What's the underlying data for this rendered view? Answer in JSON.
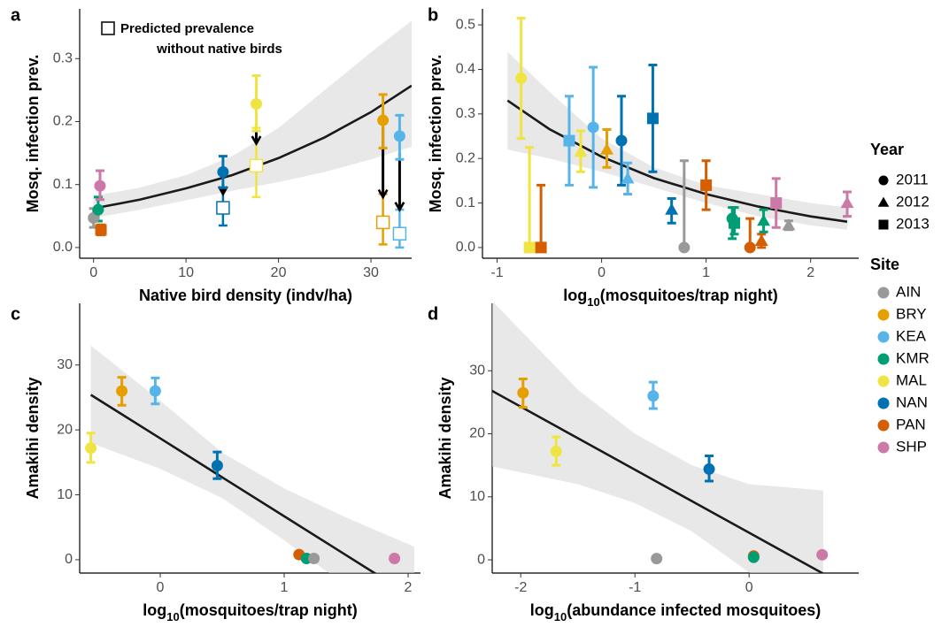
{
  "legend": {
    "shape_title": "Year",
    "shapes": [
      {
        "label": "2011",
        "shape": "circle"
      },
      {
        "label": "2012",
        "shape": "triangle"
      },
      {
        "label": "2013",
        "shape": "square"
      }
    ],
    "color_title": "Site",
    "colors": [
      {
        "label": "AIN",
        "color": "#999999"
      },
      {
        "label": "BRY",
        "color": "#E69F00"
      },
      {
        "label": "KEA",
        "color": "#56B4E9"
      },
      {
        "label": "KMR",
        "color": "#009E73"
      },
      {
        "label": "MAL",
        "color": "#F0E442"
      },
      {
        "label": "NAN",
        "color": "#0072B2"
      },
      {
        "label": "PAN",
        "color": "#D55E00"
      },
      {
        "label": "SHP",
        "color": "#CC79A7"
      }
    ]
  },
  "chart_data": [
    {
      "type": "errorbar-scatter",
      "panel": "a",
      "xlabel": "Native bird density (indv/ha)",
      "ylabel": "Mosq. infection prev.",
      "annotation": [
        "Predicted prevalence",
        "without native birds"
      ],
      "xlim": [
        -1.5,
        34.4
      ],
      "ylim": [
        -0.017,
        0.379
      ],
      "xticks": [
        0,
        10,
        20,
        30
      ],
      "yticks": [
        {
          "value": 0,
          "label": "0.0"
        },
        0.1,
        0.2,
        0.3
      ],
      "fit": {
        "x": [
          0,
          5,
          10,
          15,
          20,
          25,
          30,
          34.4
        ],
        "y": [
          0.062,
          0.076,
          0.094,
          0.115,
          0.142,
          0.175,
          0.215,
          0.257
        ],
        "low": [
          0.047,
          0.06,
          0.075,
          0.09,
          0.104,
          0.12,
          0.14,
          0.16
        ],
        "high": [
          0.082,
          0.095,
          0.115,
          0.145,
          0.19,
          0.25,
          0.31,
          0.36
        ]
      },
      "points": [
        {
          "site": "AIN",
          "shape": "circle",
          "x": 0,
          "y": 0.047,
          "low": 0.032,
          "high": 0.062
        },
        {
          "site": "KMR",
          "shape": "circle",
          "x": 0.5,
          "y": 0.06,
          "low": 0.042,
          "high": 0.08
        },
        {
          "site": "SHP",
          "shape": "circle",
          "x": 0.7,
          "y": 0.098,
          "low": 0.076,
          "high": 0.122
        },
        {
          "site": "PAN",
          "shape": "square",
          "x": 0.8,
          "y": 0.028,
          "low": 0.02,
          "high": 0.036
        },
        {
          "site": "NAN",
          "shape": "circle",
          "x": 14,
          "y": 0.12,
          "low": 0.095,
          "high": 0.145
        },
        {
          "site": "MAL",
          "shape": "circle",
          "x": 17.6,
          "y": 0.228,
          "low": 0.185,
          "high": 0.273
        },
        {
          "site": "BRY",
          "shape": "circle",
          "x": 31.3,
          "y": 0.202,
          "low": 0.158,
          "high": 0.243
        },
        {
          "site": "KEA",
          "shape": "circle",
          "x": 33.1,
          "y": 0.177,
          "low": 0.14,
          "high": 0.21
        }
      ],
      "predicted": [
        {
          "site": "NAN",
          "x": 14,
          "y": 0.063,
          "low": 0.035,
          "high": 0.095,
          "arrow_from": 0.1,
          "arrow_to": 0.085
        },
        {
          "site": "MAL",
          "x": 17.6,
          "y": 0.13,
          "low": 0.08,
          "high": 0.19,
          "arrow_from": 0.19,
          "arrow_to": 0.165
        },
        {
          "site": "BRY",
          "x": 31.3,
          "y": 0.04,
          "low": 0.005,
          "high": 0.085,
          "arrow_from": 0.19,
          "arrow_to": 0.08
        },
        {
          "site": "KEA",
          "x": 33.1,
          "y": 0.022,
          "low": 0,
          "high": 0.06,
          "arrow_from": 0.15,
          "arrow_to": 0.06
        }
      ]
    },
    {
      "type": "errorbar-scatter",
      "panel": "b",
      "xlabel": [
        "log",
        "10",
        "(mosquitoes/trap night)"
      ],
      "ylabel": "Mosq. infection prev.",
      "xlim": [
        -1.14,
        2.46
      ],
      "ylim": [
        -0.024,
        0.536
      ],
      "xticks": [
        -1,
        0,
        1,
        2
      ],
      "yticks": [
        {
          "value": 0,
          "label": "0.0"
        },
        0.1,
        0.2,
        0.3,
        0.4,
        0.5
      ],
      "fit": {
        "x": [
          -0.9,
          -0.5,
          0,
          0.5,
          1,
          1.5,
          2,
          2.35
        ],
        "y": [
          0.33,
          0.266,
          0.204,
          0.156,
          0.12,
          0.092,
          0.07,
          0.058
        ],
        "low": [
          0.22,
          0.2,
          0.17,
          0.135,
          0.1,
          0.07,
          0.05,
          0.04
        ],
        "high": [
          0.44,
          0.35,
          0.245,
          0.18,
          0.14,
          0.12,
          0.1,
          0.09
        ]
      },
      "points": [
        {
          "site": "MAL",
          "shape": "circle",
          "x": -0.77,
          "y": 0.38,
          "low": 0.245,
          "high": 0.515
        },
        {
          "site": "MAL",
          "shape": "square",
          "x": -0.69,
          "y": 0,
          "low": 0,
          "high": 0.225
        },
        {
          "site": "PAN",
          "shape": "square",
          "x": -0.58,
          "y": 0,
          "low": 0,
          "high": 0.14
        },
        {
          "site": "KEA",
          "shape": "square",
          "x": -0.31,
          "y": 0.24,
          "low": 0.14,
          "high": 0.34
        },
        {
          "site": "MAL",
          "shape": "triangle",
          "x": -0.2,
          "y": 0.215,
          "low": 0.17,
          "high": 0.262
        },
        {
          "site": "KEA",
          "shape": "circle",
          "x": -0.08,
          "y": 0.27,
          "low": 0.135,
          "high": 0.405
        },
        {
          "site": "BRY",
          "shape": "triangle",
          "x": 0.05,
          "y": 0.22,
          "low": 0.18,
          "high": 0.265
        },
        {
          "site": "NAN",
          "shape": "circle",
          "x": 0.19,
          "y": 0.24,
          "low": 0.14,
          "high": 0.34
        },
        {
          "site": "KEA",
          "shape": "triangle",
          "x": 0.25,
          "y": 0.155,
          "low": 0.12,
          "high": 0.19
        },
        {
          "site": "NAN",
          "shape": "square",
          "x": 0.49,
          "y": 0.29,
          "low": 0.17,
          "high": 0.41
        },
        {
          "site": "NAN",
          "shape": "triangle",
          "x": 0.67,
          "y": 0.085,
          "low": 0.055,
          "high": 0.11
        },
        {
          "site": "AIN",
          "shape": "circle",
          "x": 0.79,
          "y": 0,
          "low": 0,
          "high": 0.195
        },
        {
          "site": "PAN",
          "shape": "square",
          "x": 1,
          "y": 0.14,
          "low": 0.085,
          "high": 0.195
        },
        {
          "site": "KMR",
          "shape": "circle",
          "x": 1.25,
          "y": 0.065,
          "low": 0.02,
          "high": 0.09
        },
        {
          "site": "KMR",
          "shape": "square",
          "x": 1.27,
          "y": 0.055,
          "low": 0.03,
          "high": 0.09
        },
        {
          "site": "PAN",
          "shape": "circle",
          "x": 1.42,
          "y": 0,
          "low": 0,
          "high": 0.065
        },
        {
          "site": "PAN",
          "shape": "triangle",
          "x": 1.53,
          "y": 0.015,
          "low": 0,
          "high": 0.03
        },
        {
          "site": "KMR",
          "shape": "triangle",
          "x": 1.55,
          "y": 0.06,
          "low": 0.035,
          "high": 0.085
        },
        {
          "site": "SHP",
          "shape": "square",
          "x": 1.67,
          "y": 0.1,
          "low": 0.045,
          "high": 0.155
        },
        {
          "site": "AIN",
          "shape": "triangle",
          "x": 1.79,
          "y": 0.05,
          "low": 0.04,
          "high": 0.06
        },
        {
          "site": "SHP",
          "shape": "triangle",
          "x": 2.35,
          "y": 0.1,
          "low": 0.07,
          "high": 0.125
        }
      ]
    },
    {
      "type": "errorbar-scatter",
      "panel": "c",
      "xlabel": [
        "log",
        "10",
        "(mosquitoes/trap night)"
      ],
      "ylabel": "Amakihi density",
      "xlim": [
        -0.65,
        2.1
      ],
      "ylim": [
        -2.05,
        39.5
      ],
      "xticks": [
        0,
        1,
        2
      ],
      "yticks": [
        0,
        10,
        20,
        30
      ],
      "fit": {
        "x": [
          -0.56,
          0,
          0.5,
          1,
          1.5,
          2.05
        ],
        "y": [
          25.4,
          18.7,
          12.7,
          6.7,
          0.7,
          -5.9
        ],
        "low": [
          18,
          14,
          9.5,
          3,
          -4,
          -12
        ],
        "high": [
          33,
          24.5,
          16.5,
          11,
          6.5,
          2
        ]
      },
      "points": [
        {
          "site": "MAL",
          "shape": "circle",
          "x": -0.56,
          "y": 17.2,
          "low": 15,
          "high": 19.5
        },
        {
          "site": "BRY",
          "shape": "circle",
          "x": -0.31,
          "y": 26,
          "low": 23.8,
          "high": 28.1
        },
        {
          "site": "KEA",
          "shape": "circle",
          "x": -0.04,
          "y": 26,
          "low": 24,
          "high": 28
        },
        {
          "site": "NAN",
          "shape": "circle",
          "x": 0.46,
          "y": 14.5,
          "low": 12.5,
          "high": 16.6
        },
        {
          "site": "PAN",
          "shape": "circle",
          "x": 1.12,
          "y": 0.8,
          "low": 0.5,
          "high": 1.1
        },
        {
          "site": "KMR",
          "shape": "circle",
          "x": 1.18,
          "y": 0.2,
          "low": 0,
          "high": 0.4
        },
        {
          "site": "AIN",
          "shape": "circle",
          "x": 1.24,
          "y": 0.2,
          "low": 0,
          "high": 0.4
        },
        {
          "site": "SHP",
          "shape": "circle",
          "x": 1.89,
          "y": 0.2,
          "low": 0,
          "high": 0.4
        }
      ]
    },
    {
      "type": "errorbar-scatter",
      "panel": "d",
      "xlabel": [
        "log",
        "10",
        "(abundance infected mosquitoes)"
      ],
      "ylabel": "Amakihi density",
      "xlim": [
        -2.25,
        0.96
      ],
      "ylim": [
        -2.1,
        40.7
      ],
      "xticks": [
        -2,
        -1,
        0
      ],
      "yticks": [
        0,
        10,
        20,
        30
      ],
      "fit": {
        "x": [
          -2.3,
          -1.5,
          -1,
          -0.5,
          0,
          0.65
        ],
        "y": [
          27.3,
          19.3,
          14.3,
          9.3,
          4.3,
          -2.2
        ],
        "low": [
          15,
          12,
          9,
          4.5,
          -2,
          -12
        ],
        "high": [
          42,
          27,
          20,
          15,
          12,
          11
        ]
      },
      "points": [
        {
          "site": "BRY",
          "shape": "circle",
          "x": -1.98,
          "y": 26.5,
          "low": 24.2,
          "high": 28.7
        },
        {
          "site": "MAL",
          "shape": "circle",
          "x": -1.69,
          "y": 17.2,
          "low": 15,
          "high": 19.5
        },
        {
          "site": "KEA",
          "shape": "circle",
          "x": -0.84,
          "y": 26,
          "low": 24,
          "high": 28.2
        },
        {
          "site": "AIN",
          "shape": "circle",
          "x": -0.81,
          "y": 0.2,
          "low": 0,
          "high": 0.4
        },
        {
          "site": "NAN",
          "shape": "circle",
          "x": -0.35,
          "y": 14.4,
          "low": 12.5,
          "high": 16.5
        },
        {
          "site": "PAN",
          "shape": "circle",
          "x": 0.04,
          "y": 0.6,
          "low": 0.3,
          "high": 0.9
        },
        {
          "site": "KMR",
          "shape": "circle",
          "x": 0.04,
          "y": 0.4,
          "low": 0.1,
          "high": 0.7
        },
        {
          "site": "SHP",
          "shape": "circle",
          "x": 0.64,
          "y": 0.8,
          "low": 0.5,
          "high": 1.1
        }
      ]
    }
  ]
}
